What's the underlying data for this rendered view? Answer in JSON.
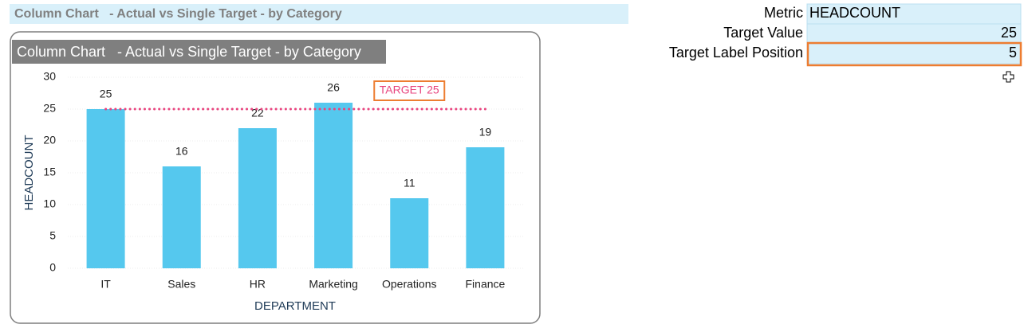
{
  "banner": {
    "title": "Column Chart   - Actual vs Single Target - by Category"
  },
  "chart_data": {
    "type": "bar",
    "title": "Column Chart   - Actual vs Single Target - by Category",
    "categories": [
      "IT",
      "Sales",
      "HR",
      "Marketing",
      "Operations",
      "Finance"
    ],
    "values": [
      25,
      16,
      22,
      26,
      11,
      19
    ],
    "color": "#55c8ee",
    "ylim": [
      0,
      30
    ],
    "yticks": [
      0,
      5,
      10,
      15,
      20,
      25,
      30
    ],
    "grid": true,
    "x_label": "DEPARTMENT",
    "y_label": "HEADCOUNT",
    "target": 25,
    "target_label": "TARGET 25",
    "target_color": "#e8457f"
  },
  "sheet": {
    "rows": [
      {
        "label": "Metric",
        "value": "HEADCOUNT"
      },
      {
        "label": "Target Value",
        "value": 25
      },
      {
        "label": "Target Label Position",
        "value": 5
      }
    ]
  }
}
